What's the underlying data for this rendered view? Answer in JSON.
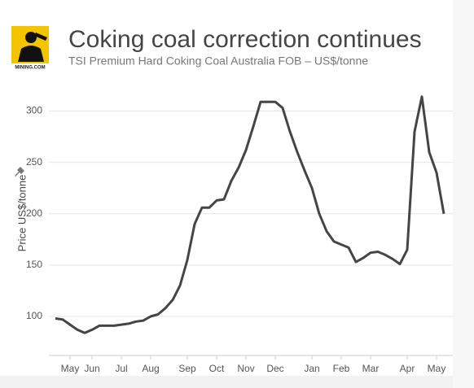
{
  "chart_data": {
    "type": "line",
    "logo_text": "MINING.COM",
    "title": "Coking coal correction continues",
    "subtitle": "TSI Premium Hard Coking Coal Australia FOB – US$/tonne",
    "y_label": "Price US$/tonne",
    "categories": [
      null,
      null,
      "May",
      null,
      null,
      "Jun",
      null,
      null,
      null,
      "Jul",
      null,
      null,
      null,
      "Aug",
      null,
      null,
      null,
      null,
      "Sep",
      null,
      null,
      null,
      "Oct",
      null,
      null,
      null,
      "Nov",
      null,
      null,
      null,
      "Dec",
      null,
      null,
      null,
      null,
      "Jan",
      null,
      null,
      null,
      "Feb",
      null,
      null,
      null,
      "Mar",
      null,
      null,
      null,
      null,
      "Apr",
      null,
      null,
      null,
      "May",
      null
    ],
    "series": [
      {
        "name": "Price",
        "color": "#454545",
        "values": [
          98,
          97,
          92,
          87,
          84,
          87,
          91,
          91,
          91,
          92,
          93,
          95,
          96,
          100,
          102,
          108,
          116,
          130,
          155,
          190,
          206,
          206,
          213,
          214,
          232,
          245,
          262,
          285,
          309,
          309,
          309,
          303,
          280,
          260,
          242,
          225,
          200,
          183,
          173,
          170,
          167,
          153,
          157,
          162,
          163,
          160,
          156,
          151,
          165,
          280,
          314,
          260,
          240,
          200
        ]
      }
    ],
    "ylim": [
      62,
      321
    ],
    "yticks": [
      100,
      150,
      200,
      250,
      300
    ],
    "grid": true
  }
}
